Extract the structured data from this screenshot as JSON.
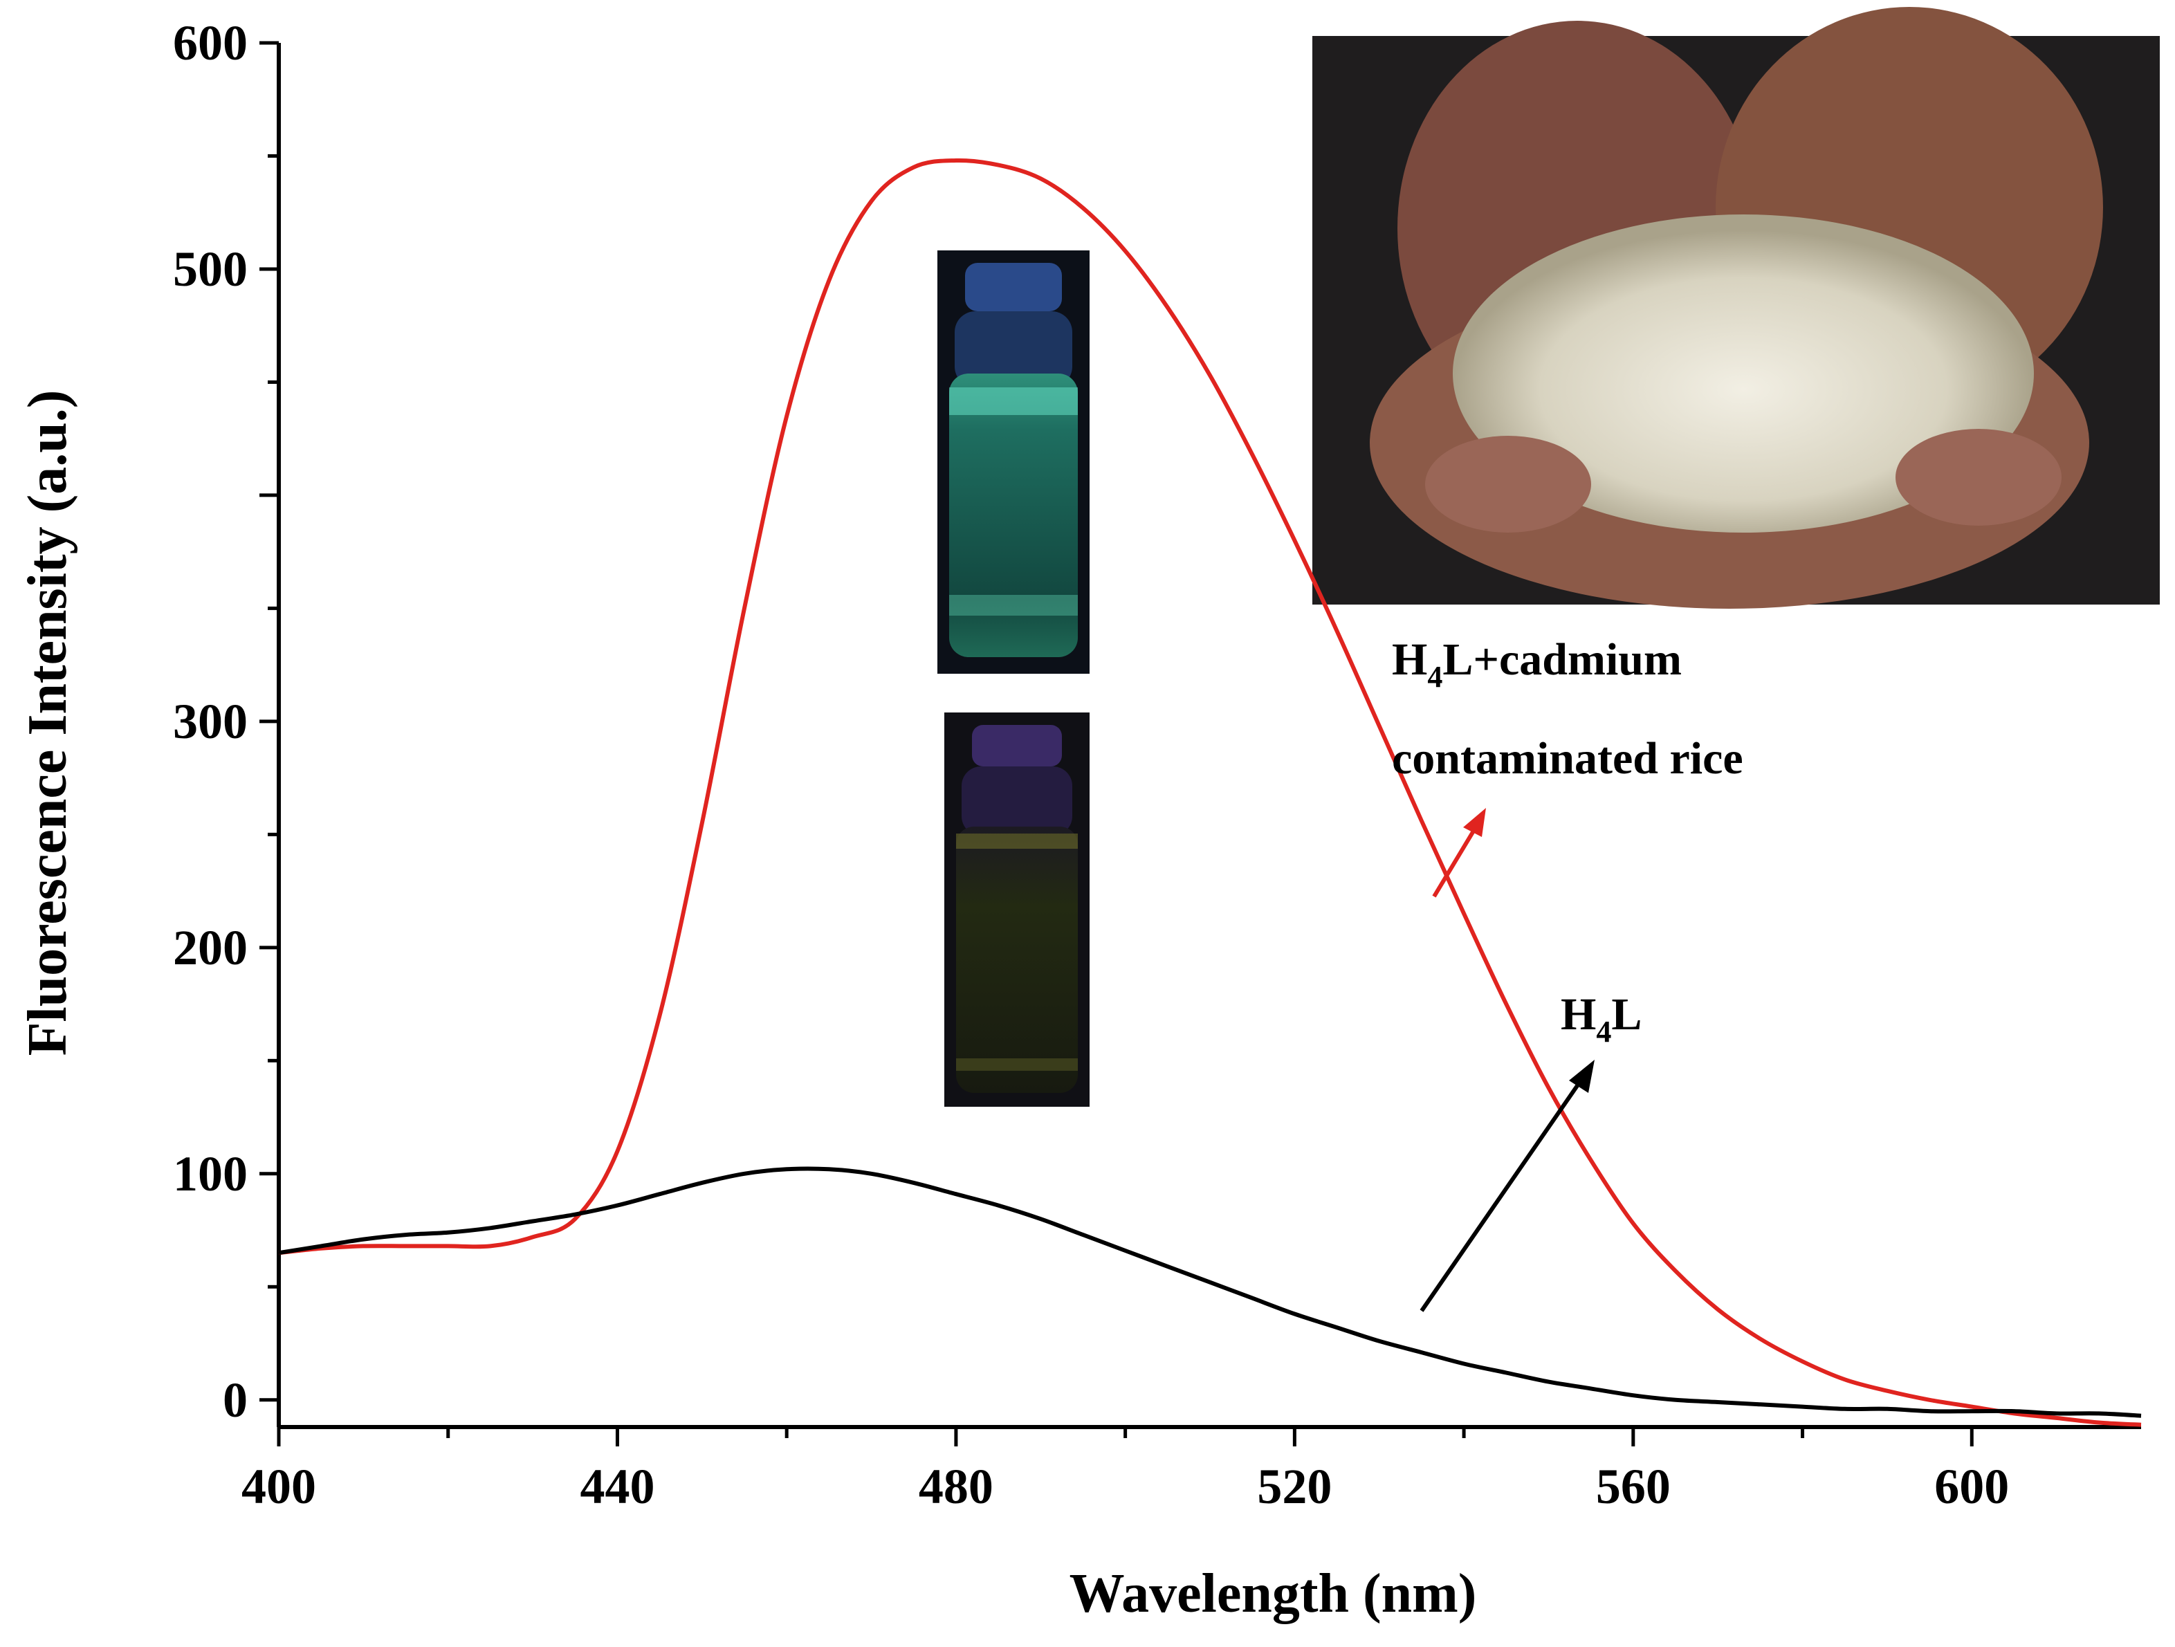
{
  "chart_data": {
    "type": "line",
    "title": "",
    "xlabel": "Wavelength (nm)",
    "ylabel": "Fluorescence Intensity (a.u.)",
    "xlim": [
      400,
      620
    ],
    "ylim": [
      -12,
      600
    ],
    "xticks": [
      400,
      440,
      480,
      520,
      560,
      600
    ],
    "yticks": [
      0,
      100,
      200,
      300,
      500,
      600
    ],
    "grid": false,
    "colors": {
      "red_series": "#e0241f",
      "black_series": "#000000"
    },
    "series": [
      {
        "name": "H4L+cadmium contaminated rice",
        "color": "#e0241f",
        "x": [
          400,
          405,
          410,
          415,
          420,
          425,
          430,
          435,
          440,
          445,
          450,
          455,
          460,
          465,
          470,
          475,
          480,
          485,
          490,
          495,
          500,
          505,
          510,
          515,
          520,
          525,
          530,
          535,
          540,
          545,
          550,
          555,
          560,
          565,
          570,
          575,
          580,
          585,
          590,
          595,
          600,
          605,
          610,
          615,
          620
        ],
        "y": [
          65,
          67,
          68,
          68,
          68,
          68,
          72,
          80,
          110,
          170,
          255,
          350,
          435,
          495,
          530,
          545,
          548,
          546,
          540,
          527,
          508,
          483,
          453,
          418,
          380,
          340,
          298,
          256,
          215,
          175,
          138,
          106,
          78,
          57,
          40,
          27,
          17,
          9,
          4,
          0,
          -3,
          -6,
          -8,
          -10,
          -11
        ]
      },
      {
        "name": "H4L",
        "color": "#000000",
        "x": [
          400,
          405,
          410,
          415,
          420,
          425,
          430,
          435,
          440,
          445,
          450,
          455,
          460,
          465,
          470,
          475,
          480,
          485,
          490,
          495,
          500,
          505,
          510,
          515,
          520,
          525,
          530,
          535,
          540,
          545,
          550,
          555,
          560,
          565,
          570,
          575,
          580,
          585,
          590,
          595,
          600,
          605,
          610,
          615,
          620
        ],
        "y": [
          65,
          68,
          71,
          73,
          74,
          76,
          79,
          82,
          86,
          91,
          96,
          100,
          102,
          102,
          100,
          96,
          91,
          86,
          80,
          73,
          66,
          59,
          52,
          45,
          38,
          32,
          26,
          21,
          16,
          12,
          8,
          5,
          2,
          0,
          -1,
          -2,
          -3,
          -4,
          -4,
          -5,
          -5,
          -5,
          -6,
          -6,
          -7
        ]
      }
    ],
    "annotations": [
      {
        "text": "H",
        "sub": "4",
        "rest": "L+cadmium",
        "line2": "contaminated rice",
        "target_series": "H4L+cadmium contaminated rice"
      },
      {
        "text": "H",
        "sub": "4",
        "rest": "L",
        "target_series": "H4L"
      }
    ],
    "insets": [
      "rice-in-hands-photo",
      "glowing-vial-photo",
      "dark-vial-photo"
    ]
  }
}
